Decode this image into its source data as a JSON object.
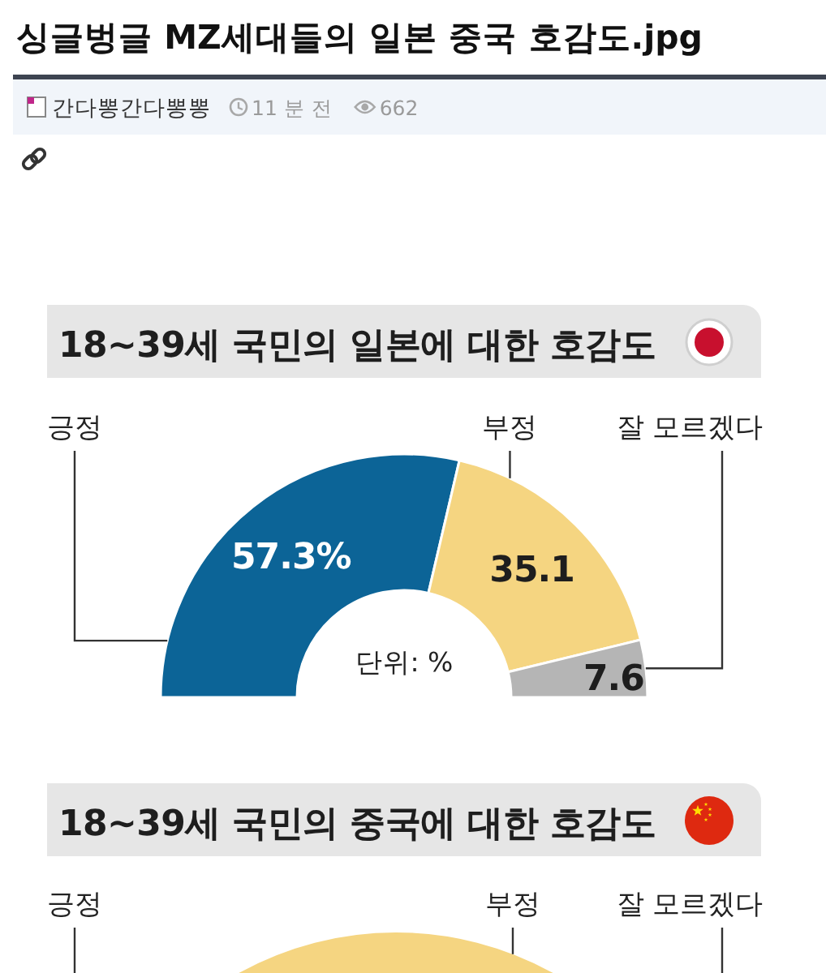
{
  "chart_data": [
    {
      "type": "other",
      "title": "싱글벙글 MZ세대들의 일본 중국 호감도.jpg",
      "annotations": [
        "간다뽕간다뽕뽕",
        "11 분 전",
        "662"
      ]
    },
    {
      "type": "donut",
      "title": "18~39세 국민의 일본에 대한 호감도",
      "categories": [
        "긍정",
        "부정",
        "잘 모르겠다"
      ],
      "values": [
        57.3,
        35.1,
        7.6
      ],
      "colors": [
        "#0c6497",
        "#f5d581",
        "#b5b5b5"
      ],
      "value_labels": [
        "57.3%",
        "35.1",
        "7.6"
      ],
      "annotations": [
        "단위: %"
      ]
    },
    {
      "type": "other",
      "title": "18~39세 국민의 중국에 대한 호감도",
      "annotations": [
        "긍정",
        "부정",
        "잘 모르겠다"
      ]
    }
  ]
}
